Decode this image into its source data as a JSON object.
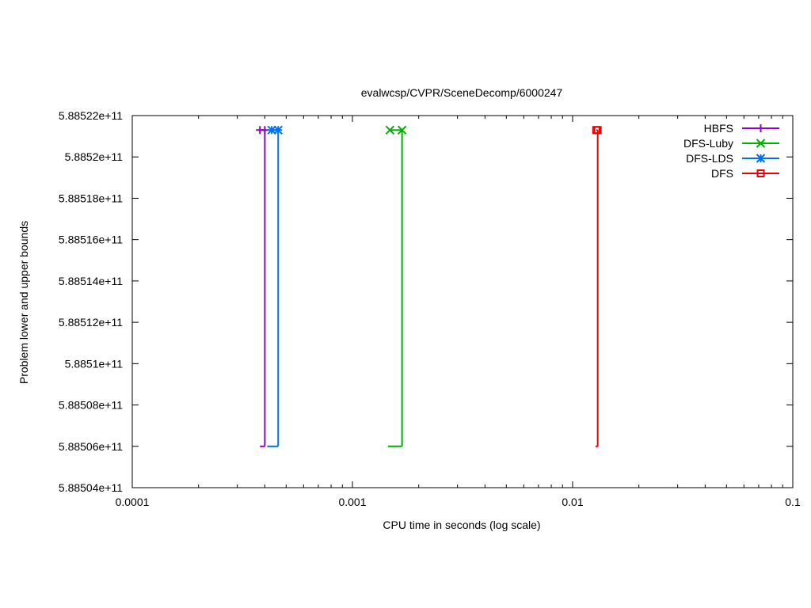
{
  "chart_data": {
    "type": "line",
    "title": "evalwcsp/CVPR/SceneDecomp/6000247",
    "xlabel": "CPU time in seconds (log scale)",
    "ylabel": "Problem lower and upper bounds",
    "xscale": "log",
    "xlim": [
      0.0001,
      0.1
    ],
    "ylim": [
      588504000000,
      588522000000
    ],
    "xticks": [
      0.0001,
      0.001,
      0.01,
      0.1
    ],
    "xtick_labels": [
      "0.0001",
      "0.001",
      "0.01",
      "0.1"
    ],
    "yticks": [
      588504000000,
      588506000000,
      588508000000,
      588510000000,
      588512000000,
      588514000000,
      588516000000,
      588518000000,
      588520000000,
      588522000000
    ],
    "ytick_labels": [
      "5.88504e+11",
      "5.88506e+11",
      "5.88508e+11",
      "5.8851e+11",
      "5.88512e+11",
      "5.88514e+11",
      "5.88516e+11",
      "5.88518e+11",
      "5.8852e+11",
      "5.88522e+11"
    ],
    "grid": false,
    "legend_position": "top-right",
    "series": [
      {
        "name": "HBFS",
        "color": "#9400d3",
        "marker": "plus",
        "lower": [
          [
            0.00038,
            588506000000
          ],
          [
            0.0004,
            588506000000
          ]
        ],
        "upper": [
          [
            0.00038,
            588521300000
          ],
          [
            0.0004,
            588521300000
          ]
        ]
      },
      {
        "name": "DFS-Luby",
        "color": "#00b000",
        "marker": "cross",
        "lower": [
          [
            0.00145,
            588506000000
          ],
          [
            0.00168,
            588506000000
          ]
        ],
        "upper": [
          [
            0.00148,
            588521300000
          ],
          [
            0.00168,
            588521300000
          ]
        ]
      },
      {
        "name": "DFS-LDS",
        "color": "#0072ee",
        "marker": "star",
        "lower": [
          [
            0.00041,
            588506000000
          ],
          [
            0.00046,
            588506000000
          ]
        ],
        "upper": [
          [
            0.00043,
            588521300000
          ],
          [
            0.00046,
            588521300000
          ]
        ]
      },
      {
        "name": "DFS",
        "color": "#ee0000",
        "marker": "square",
        "lower": [
          [
            0.0127,
            588506000000
          ],
          [
            0.013,
            588506000000
          ]
        ],
        "upper": [
          [
            0.0128,
            588521300000
          ],
          [
            0.013,
            588521300000
          ]
        ]
      }
    ]
  }
}
